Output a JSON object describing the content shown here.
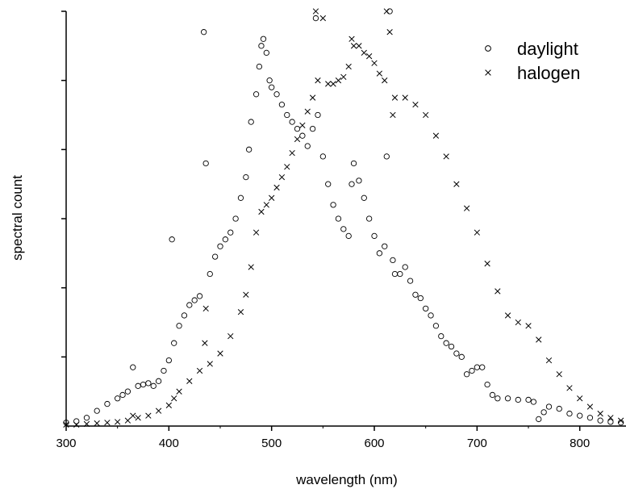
{
  "chart_data": {
    "type": "scatter",
    "title": "",
    "xlabel": "wavelength (nm)",
    "ylabel": "spectral count",
    "xlim": [
      300,
      845
    ],
    "ylim": [
      0,
      6
    ],
    "x_ticks": [
      300,
      400,
      500,
      600,
      700,
      800
    ],
    "y_ticks": [
      1,
      2,
      3,
      4,
      5,
      6
    ],
    "y_tick_labels_shown": false,
    "grid": false,
    "legend_position": "top-right",
    "marker_color": "#000000",
    "series": [
      {
        "name": "daylight",
        "marker": "circle",
        "points": [
          [
            300,
            0.05
          ],
          [
            310,
            0.07
          ],
          [
            320,
            0.12
          ],
          [
            330,
            0.22
          ],
          [
            340,
            0.32
          ],
          [
            350,
            0.4
          ],
          [
            355,
            0.45
          ],
          [
            360,
            0.5
          ],
          [
            365,
            0.85
          ],
          [
            370,
            0.58
          ],
          [
            375,
            0.6
          ],
          [
            380,
            0.62
          ],
          [
            385,
            0.58
          ],
          [
            390,
            0.65
          ],
          [
            395,
            0.8
          ],
          [
            400,
            0.95
          ],
          [
            403,
            2.7
          ],
          [
            405,
            1.2
          ],
          [
            410,
            1.45
          ],
          [
            415,
            1.6
          ],
          [
            420,
            1.75
          ],
          [
            425,
            1.82
          ],
          [
            430,
            1.88
          ],
          [
            434,
            5.7
          ],
          [
            436,
            3.8
          ],
          [
            440,
            2.2
          ],
          [
            445,
            2.45
          ],
          [
            450,
            2.6
          ],
          [
            455,
            2.7
          ],
          [
            460,
            2.8
          ],
          [
            465,
            3.0
          ],
          [
            470,
            3.3
          ],
          [
            475,
            3.6
          ],
          [
            478,
            4.0
          ],
          [
            480,
            4.4
          ],
          [
            485,
            4.8
          ],
          [
            488,
            5.2
          ],
          [
            490,
            5.5
          ],
          [
            492,
            5.6
          ],
          [
            495,
            5.4
          ],
          [
            498,
            5.0
          ],
          [
            500,
            4.9
          ],
          [
            505,
            4.8
          ],
          [
            510,
            4.65
          ],
          [
            515,
            4.5
          ],
          [
            520,
            4.4
          ],
          [
            525,
            4.3
          ],
          [
            530,
            4.2
          ],
          [
            535,
            4.05
          ],
          [
            540,
            4.3
          ],
          [
            543,
            5.9
          ],
          [
            545,
            4.5
          ],
          [
            550,
            3.9
          ],
          [
            555,
            3.5
          ],
          [
            560,
            3.2
          ],
          [
            565,
            3.0
          ],
          [
            570,
            2.85
          ],
          [
            575,
            2.75
          ],
          [
            578,
            3.5
          ],
          [
            580,
            3.8
          ],
          [
            585,
            3.55
          ],
          [
            590,
            3.3
          ],
          [
            595,
            3.0
          ],
          [
            600,
            2.75
          ],
          [
            605,
            2.5
          ],
          [
            610,
            2.6
          ],
          [
            612,
            3.9
          ],
          [
            615,
            6.0
          ],
          [
            618,
            2.4
          ],
          [
            620,
            2.2
          ],
          [
            625,
            2.2
          ],
          [
            630,
            2.3
          ],
          [
            635,
            2.1
          ],
          [
            640,
            1.9
          ],
          [
            645,
            1.85
          ],
          [
            650,
            1.7
          ],
          [
            655,
            1.6
          ],
          [
            660,
            1.45
          ],
          [
            665,
            1.3
          ],
          [
            670,
            1.2
          ],
          [
            675,
            1.15
          ],
          [
            680,
            1.05
          ],
          [
            685,
            1.0
          ],
          [
            690,
            0.75
          ],
          [
            695,
            0.8
          ],
          [
            700,
            0.85
          ],
          [
            705,
            0.85
          ],
          [
            710,
            0.6
          ],
          [
            715,
            0.45
          ],
          [
            720,
            0.4
          ],
          [
            730,
            0.4
          ],
          [
            740,
            0.38
          ],
          [
            750,
            0.38
          ],
          [
            755,
            0.35
          ],
          [
            760,
            0.1
          ],
          [
            765,
            0.2
          ],
          [
            770,
            0.28
          ],
          [
            780,
            0.25
          ],
          [
            790,
            0.18
          ],
          [
            800,
            0.15
          ],
          [
            810,
            0.12
          ],
          [
            820,
            0.08
          ],
          [
            830,
            0.06
          ],
          [
            840,
            0.05
          ]
        ]
      },
      {
        "name": "halogen",
        "marker": "cross",
        "points": [
          [
            300,
            0.02
          ],
          [
            310,
            0.02
          ],
          [
            320,
            0.03
          ],
          [
            330,
            0.04
          ],
          [
            340,
            0.05
          ],
          [
            350,
            0.06
          ],
          [
            360,
            0.08
          ],
          [
            365,
            0.15
          ],
          [
            370,
            0.12
          ],
          [
            380,
            0.15
          ],
          [
            390,
            0.22
          ],
          [
            400,
            0.3
          ],
          [
            405,
            0.4
          ],
          [
            410,
            0.5
          ],
          [
            420,
            0.65
          ],
          [
            430,
            0.8
          ],
          [
            435,
            1.2
          ],
          [
            436,
            1.7
          ],
          [
            440,
            0.9
          ],
          [
            450,
            1.05
          ],
          [
            460,
            1.3
          ],
          [
            470,
            1.65
          ],
          [
            475,
            1.9
          ],
          [
            480,
            2.3
          ],
          [
            485,
            2.8
          ],
          [
            490,
            3.1
          ],
          [
            495,
            3.2
          ],
          [
            500,
            3.3
          ],
          [
            505,
            3.45
          ],
          [
            510,
            3.6
          ],
          [
            515,
            3.75
          ],
          [
            520,
            3.95
          ],
          [
            525,
            4.15
          ],
          [
            530,
            4.35
          ],
          [
            535,
            4.55
          ],
          [
            540,
            4.75
          ],
          [
            543,
            6.0
          ],
          [
            545,
            5.0
          ],
          [
            550,
            5.9
          ],
          [
            555,
            4.95
          ],
          [
            560,
            4.95
          ],
          [
            565,
            5.0
          ],
          [
            570,
            5.05
          ],
          [
            575,
            5.2
          ],
          [
            578,
            5.6
          ],
          [
            580,
            5.5
          ],
          [
            585,
            5.5
          ],
          [
            590,
            5.4
          ],
          [
            595,
            5.35
          ],
          [
            600,
            5.25
          ],
          [
            605,
            5.1
          ],
          [
            610,
            5.0
          ],
          [
            612,
            6.0
          ],
          [
            615,
            5.7
          ],
          [
            618,
            4.5
          ],
          [
            620,
            4.75
          ],
          [
            630,
            4.75
          ],
          [
            640,
            4.65
          ],
          [
            650,
            4.5
          ],
          [
            660,
            4.2
          ],
          [
            670,
            3.9
          ],
          [
            680,
            3.5
          ],
          [
            690,
            3.15
          ],
          [
            700,
            2.8
          ],
          [
            710,
            2.35
          ],
          [
            720,
            1.95
          ],
          [
            730,
            1.6
          ],
          [
            740,
            1.5
          ],
          [
            750,
            1.45
          ],
          [
            760,
            1.25
          ],
          [
            770,
            0.95
          ],
          [
            780,
            0.75
          ],
          [
            790,
            0.55
          ],
          [
            800,
            0.4
          ],
          [
            810,
            0.28
          ],
          [
            820,
            0.18
          ],
          [
            830,
            0.12
          ],
          [
            840,
            0.08
          ]
        ]
      }
    ]
  }
}
